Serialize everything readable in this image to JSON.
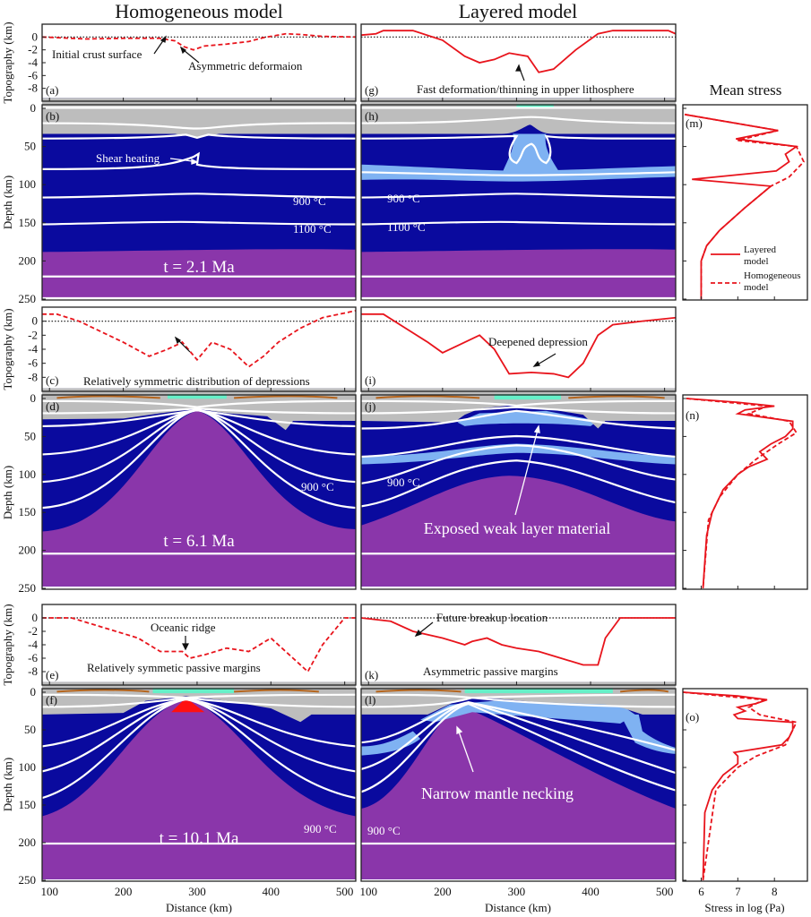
{
  "titles": {
    "homogeneous": "Homogeneous model",
    "layered": "Layered model",
    "stress": "Mean stress"
  },
  "axes": {
    "topography_label": "Topography (km)",
    "depth_label": "Depth (km)",
    "distance_label": "Distance (km)",
    "stress_label": "Stress in log (Pa)",
    "topo_ticks": [
      "0",
      "-2",
      "-4",
      "-6",
      "-8"
    ],
    "depth_ticks": [
      "0",
      "50",
      "100",
      "150",
      "200",
      "250"
    ],
    "distance_ticks": [
      "100",
      "200",
      "300",
      "400",
      "500"
    ],
    "stress_ticks": [
      "6",
      "7",
      "8"
    ]
  },
  "panels": {
    "a": "(a)",
    "b": "(b)",
    "c": "(c)",
    "d": "(d)",
    "e": "(e)",
    "f": "(f)",
    "g": "(g)",
    "h": "(h)",
    "i": "(i)",
    "j": "(j)",
    "k": "(k)",
    "l": "(l)",
    "m": "(m)",
    "n": "(n)",
    "o": "(o)"
  },
  "annotations": {
    "a_initial": "Initial crust surface",
    "a_asym": "Asymmetric deformaion",
    "g_fast": "Fast deformation/thinning in upper lithosphere",
    "b_shear": "Shear heating",
    "b_900": "900 °C",
    "b_1100": "1100 °C",
    "b_time": "t = 2.1 Ma",
    "h_900": "900 °C",
    "h_1100": "1100 °C",
    "c_sym": "Relatively symmetric distribution of depressions",
    "i_deep": "Deepened depression",
    "d_900": "900 °C",
    "d_time": "t = 6.1 Ma",
    "j_900": "900 °C",
    "j_exposed": "Exposed weak layer material",
    "e_ridge": "Oceanic ridge",
    "e_margins": "Relatively symmetic passive margins",
    "k_future": "Future breakup location",
    "k_margins": "Asymmetric passive margins",
    "f_900": "900 °C",
    "f_time": "t = 10.1 Ma",
    "l_900": "900 °C",
    "l_necking": "Narrow mantle necking"
  },
  "legend": {
    "layered": "Layered\nmodel",
    "layered_1": "Layered",
    "layered_2": "model",
    "homogeneous_1": "Homogeneous",
    "homogeneous_2": "model"
  },
  "colors": {
    "line": "#e8141c",
    "crust": "#bdbdbd",
    "lithosphere": "#0a0a9e",
    "asthenosphere": "#8a36aa",
    "weak_layer": "#7fb2f2",
    "sediment": "#66f0c8",
    "melt": "#ff1010"
  },
  "chart_data": [
    {
      "type": "line",
      "panels": [
        "a",
        "g"
      ],
      "ylabel": "Topography (km)",
      "ylim": [
        -10,
        2
      ],
      "xlim": [
        90,
        515
      ],
      "series": [
        {
          "model": "homogeneous",
          "style": "dashed",
          "points": [
            [
              90,
              0
            ],
            [
              150,
              -0.3
            ],
            [
              200,
              -0.2
            ],
            [
              250,
              -0.2
            ],
            [
              270,
              -0.6
            ],
            [
              282,
              -1.5
            ],
            [
              295,
              -2
            ],
            [
              310,
              -1.4
            ],
            [
              340,
              -1.1
            ],
            [
              370,
              -0.7
            ],
            [
              390,
              -0.1
            ],
            [
              420,
              0.5
            ],
            [
              440,
              0.4
            ],
            [
              470,
              0.1
            ],
            [
              515,
              0
            ]
          ]
        },
        {
          "model": "layered",
          "style": "solid",
          "points": [
            [
              90,
              0.3
            ],
            [
              110,
              0.5
            ],
            [
              120,
              1
            ],
            [
              160,
              1
            ],
            [
              200,
              -0.5
            ],
            [
              230,
              -3
            ],
            [
              250,
              -4
            ],
            [
              270,
              -3.5
            ],
            [
              290,
              -2.5
            ],
            [
              315,
              -3
            ],
            [
              330,
              -5.5
            ],
            [
              350,
              -5
            ],
            [
              380,
              -2
            ],
            [
              410,
              0.5
            ],
            [
              430,
              1
            ],
            [
              505,
              1
            ],
            [
              515,
              0.5
            ]
          ]
        }
      ]
    },
    {
      "type": "line",
      "panels": [
        "c",
        "i"
      ],
      "ylabel": "Topography (km)",
      "ylim": [
        -10,
        2
      ],
      "xlim": [
        90,
        515
      ],
      "series": [
        {
          "model": "homogeneous",
          "style": "dashed",
          "points": [
            [
              90,
              1
            ],
            [
              110,
              1
            ],
            [
              140,
              0
            ],
            [
              170,
              -1.5
            ],
            [
              200,
              -3
            ],
            [
              235,
              -5
            ],
            [
              260,
              -4
            ],
            [
              280,
              -3
            ],
            [
              300,
              -5.5
            ],
            [
              320,
              -3
            ],
            [
              345,
              -4
            ],
            [
              370,
              -6.5
            ],
            [
              390,
              -5
            ],
            [
              410,
              -3
            ],
            [
              440,
              -1
            ],
            [
              470,
              0.5
            ],
            [
              515,
              1.5
            ]
          ]
        },
        {
          "model": "layered",
          "style": "solid",
          "points": [
            [
              90,
              1
            ],
            [
              120,
              1
            ],
            [
              150,
              -1
            ],
            [
              180,
              -3
            ],
            [
              200,
              -4.5
            ],
            [
              230,
              -3
            ],
            [
              250,
              -2
            ],
            [
              270,
              -4
            ],
            [
              290,
              -7.5
            ],
            [
              320,
              -7.3
            ],
            [
              350,
              -7.5
            ],
            [
              370,
              -8
            ],
            [
              390,
              -6
            ],
            [
              410,
              -2
            ],
            [
              430,
              -0.5
            ],
            [
              470,
              0
            ],
            [
              515,
              0.5
            ]
          ]
        }
      ]
    },
    {
      "type": "line",
      "panels": [
        "e",
        "k"
      ],
      "ylabel": "Topography (km)",
      "xlabel": "",
      "ylim": [
        -10,
        2
      ],
      "xlim": [
        90,
        515
      ],
      "series": [
        {
          "model": "homogeneous",
          "style": "dashed",
          "points": [
            [
              90,
              0
            ],
            [
              130,
              0
            ],
            [
              160,
              -1
            ],
            [
              190,
              -2
            ],
            [
              220,
              -3
            ],
            [
              250,
              -5
            ],
            [
              280,
              -5
            ],
            [
              290,
              -6
            ],
            [
              310,
              -5.5
            ],
            [
              340,
              -4.5
            ],
            [
              370,
              -5
            ],
            [
              400,
              -3
            ],
            [
              430,
              -6
            ],
            [
              450,
              -8
            ],
            [
              470,
              -4
            ],
            [
              500,
              0
            ],
            [
              515,
              0
            ]
          ]
        },
        {
          "model": "layered",
          "style": "solid",
          "points": [
            [
              90,
              0
            ],
            [
              130,
              -0.5
            ],
            [
              160,
              -2
            ],
            [
              200,
              -3
            ],
            [
              230,
              -4
            ],
            [
              240,
              -3.5
            ],
            [
              260,
              -3
            ],
            [
              280,
              -4
            ],
            [
              300,
              -4.5
            ],
            [
              330,
              -5
            ],
            [
              360,
              -6
            ],
            [
              390,
              -7
            ],
            [
              410,
              -7
            ],
            [
              420,
              -3
            ],
            [
              440,
              0
            ],
            [
              515,
              0
            ]
          ]
        }
      ]
    },
    {
      "type": "line",
      "panel": "m",
      "xlabel": "Stress in log (Pa)",
      "xlim": [
        5.5,
        8.9
      ],
      "ylim": [
        0,
        250
      ],
      "series": [
        {
          "name": "Layered model",
          "style": "solid",
          "points": [
            [
              5.55,
              8
            ],
            [
              8.1,
              29
            ],
            [
              6.95,
              40
            ],
            [
              8.6,
              50
            ],
            [
              8.3,
              60
            ],
            [
              8.4,
              70
            ],
            [
              8.05,
              82
            ],
            [
              5.75,
              93
            ],
            [
              7.9,
              102
            ],
            [
              7.2,
              130
            ],
            [
              6.5,
              160
            ],
            [
              6.15,
              180
            ],
            [
              6.0,
              200
            ],
            [
              6.0,
              250
            ]
          ]
        },
        {
          "name": "Homogeneous model",
          "style": "dashed",
          "points": [
            [
              5.55,
              8
            ],
            [
              8.1,
              29
            ],
            [
              7.0,
              42
            ],
            [
              8.6,
              50
            ],
            [
              8.8,
              70
            ],
            [
              8.4,
              90
            ],
            [
              7.9,
              102
            ],
            [
              7.2,
              130
            ],
            [
              6.5,
              160
            ],
            [
              6.15,
              180
            ],
            [
              6.0,
              200
            ],
            [
              6.0,
              250
            ]
          ]
        }
      ]
    },
    {
      "type": "line",
      "panel": "n",
      "xlim": [
        5.5,
        8.9
      ],
      "ylim": [
        0,
        250
      ],
      "series": [
        {
          "name": "Layered model",
          "style": "solid",
          "points": [
            [
              5.6,
              0
            ],
            [
              7,
              5
            ],
            [
              8,
              10
            ],
            [
              7.2,
              15
            ],
            [
              7,
              20
            ],
            [
              8.5,
              30
            ],
            [
              8.5,
              40
            ],
            [
              8.3,
              50
            ],
            [
              7.9,
              60
            ],
            [
              7.6,
              70
            ],
            [
              7.8,
              80
            ],
            [
              7.3,
              90
            ],
            [
              7,
              100
            ],
            [
              6.6,
              120
            ],
            [
              6.3,
              150
            ],
            [
              6.15,
              180
            ],
            [
              6.05,
              250
            ]
          ]
        },
        {
          "name": "Homogeneous model",
          "style": "dashed",
          "points": [
            [
              5.6,
              0
            ],
            [
              7.8,
              10
            ],
            [
              7.3,
              20
            ],
            [
              8.4,
              30
            ],
            [
              8.6,
              45
            ],
            [
              8.1,
              60
            ],
            [
              7.5,
              80
            ],
            [
              7,
              100
            ],
            [
              6.5,
              130
            ],
            [
              6.2,
              160
            ],
            [
              6.05,
              250
            ]
          ]
        }
      ]
    },
    {
      "type": "line",
      "panel": "o",
      "xlim": [
        5.5,
        8.9
      ],
      "ylim": [
        0,
        250
      ],
      "series": [
        {
          "name": "Layered model",
          "style": "solid",
          "points": [
            [
              5.5,
              0
            ],
            [
              7,
              5
            ],
            [
              7.8,
              10
            ],
            [
              7.5,
              15
            ],
            [
              7,
              20
            ],
            [
              7.2,
              25
            ],
            [
              6.9,
              30
            ],
            [
              7,
              35
            ],
            [
              8.5,
              40
            ],
            [
              8.5,
              50
            ],
            [
              8.4,
              60
            ],
            [
              8.2,
              70
            ],
            [
              6.9,
              80
            ],
            [
              7,
              85
            ],
            [
              7,
              95
            ],
            [
              6.6,
              110
            ],
            [
              6.3,
              130
            ],
            [
              6.1,
              160
            ],
            [
              6.05,
              250
            ]
          ]
        },
        {
          "name": "Homogeneous model",
          "style": "dashed",
          "points": [
            [
              5.5,
              0
            ],
            [
              7.7,
              10
            ],
            [
              7.3,
              20
            ],
            [
              7.6,
              30
            ],
            [
              8.6,
              40
            ],
            [
              8.3,
              70
            ],
            [
              7.5,
              85
            ],
            [
              7,
              100
            ],
            [
              6.4,
              130
            ],
            [
              6.05,
              250
            ]
          ]
        }
      ]
    }
  ]
}
